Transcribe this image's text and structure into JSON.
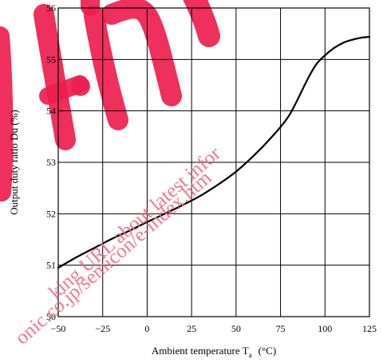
{
  "chart_data": {
    "type": "line",
    "title": "",
    "xlabel": "Ambient temperature  T",
    "xlabel_sub": "a",
    "xlabel_unit": "(°C)",
    "ylabel": "Output duty ratio  Du  (%)",
    "xlim": [
      -50,
      125
    ],
    "ylim": [
      50,
      56
    ],
    "x_ticks": [
      -50,
      -25,
      0,
      25,
      50,
      75,
      100,
      125
    ],
    "x_tick_labels": [
      "−50",
      "−25",
      "0",
      "25",
      "50",
      "75",
      "100",
      "125"
    ],
    "y_ticks": [
      50,
      51,
      52,
      53,
      54,
      55,
      56
    ],
    "y_tick_labels": [
      "50",
      "51",
      "52",
      "53",
      "54",
      "55",
      "56"
    ],
    "grid": true,
    "series": [
      {
        "x": [
          -50,
          -40,
          -30,
          -20,
          -10,
          0,
          10,
          20,
          30,
          40,
          50,
          60,
          70,
          80,
          90,
          95,
          100,
          105,
          110,
          115,
          120,
          125
        ],
        "y": [
          50.95,
          51.15,
          51.33,
          51.51,
          51.67,
          51.84,
          52.0,
          52.17,
          52.35,
          52.57,
          52.82,
          53.13,
          53.49,
          53.92,
          54.6,
          54.9,
          55.08,
          55.22,
          55.32,
          55.38,
          55.42,
          55.44
        ]
      }
    ]
  },
  "watermark": {
    "color": "#ee1d4e",
    "lines": [
      "king URL about latest infor",
      "onic.co.jp/semicon/e-index.htm"
    ]
  }
}
